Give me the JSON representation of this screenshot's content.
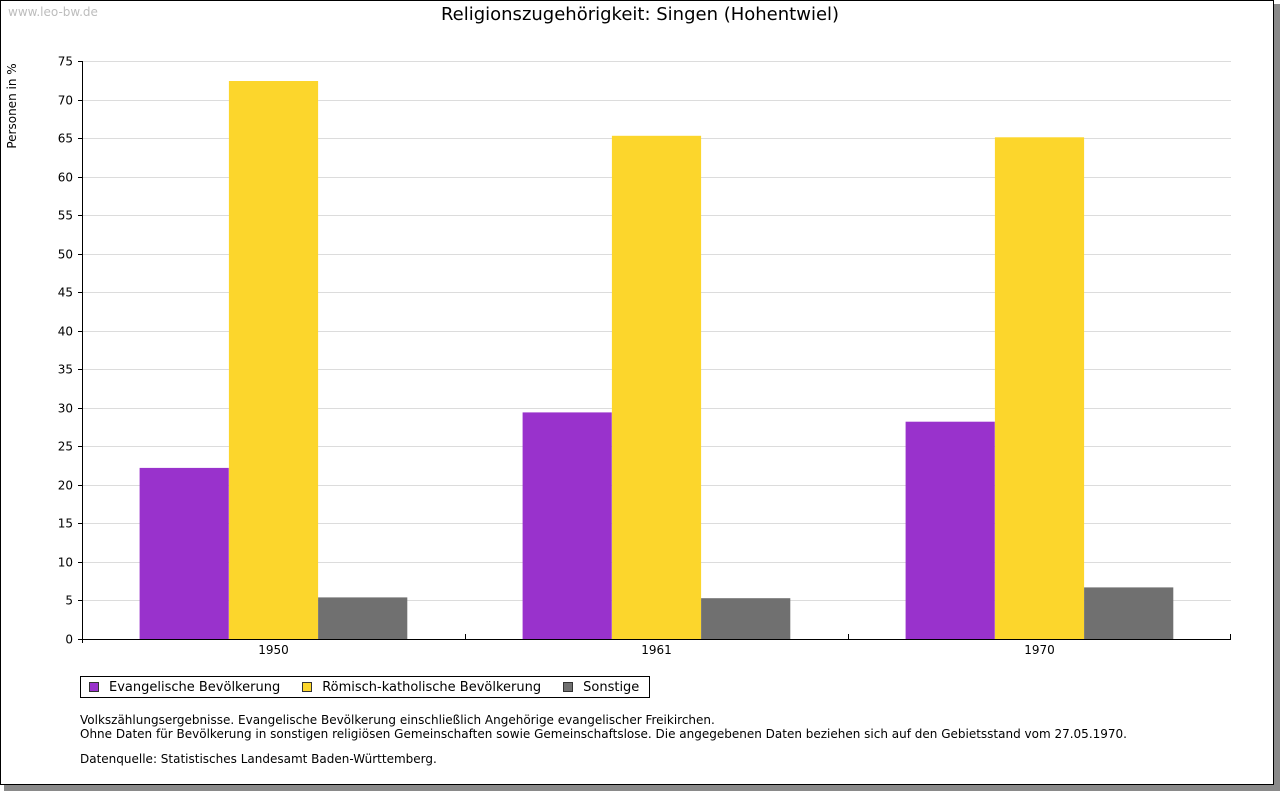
{
  "watermark": "www.leo-bw.de",
  "chart_data": {
    "type": "bar",
    "title": "Religionszugehörigkeit: Singen (Hohentwiel)",
    "xlabel": "",
    "ylabel": "Personen in %",
    "ylim": [
      0,
      75
    ],
    "yticks": [
      "0",
      "5",
      "10",
      "15",
      "20",
      "25",
      "30",
      "35",
      "40",
      "45",
      "50",
      "55",
      "60",
      "65",
      "70",
      "75"
    ],
    "categories": [
      "1950",
      "1961",
      "1970"
    ],
    "series": [
      {
        "name": "Evangelische Bevölkerung",
        "color": "#9932cc",
        "values": [
          22.2,
          29.4,
          28.2
        ]
      },
      {
        "name": "Römisch-katholische Bevölkerung",
        "color": "#fcd62c",
        "values": [
          72.4,
          65.3,
          65.1
        ]
      },
      {
        "name": "Sonstige",
        "color": "#707070",
        "values": [
          5.4,
          5.3,
          6.7
        ]
      }
    ],
    "grid": true,
    "legend_position": "bottom-left"
  },
  "notes": [
    "Volkszählungsergebnisse. Evangelische Bevölkerung einschließlich Angehörige evangelischer Freikirchen.",
    "Ohne Daten für Bevölkerung in sonstigen religiösen Gemeinschaften sowie Gemeinschaftslose. Die angegebenen Daten beziehen sich auf den Gebietsstand vom 27.05.1970."
  ],
  "source": "Datenquelle: Statistisches Landesamt Baden-Württemberg."
}
